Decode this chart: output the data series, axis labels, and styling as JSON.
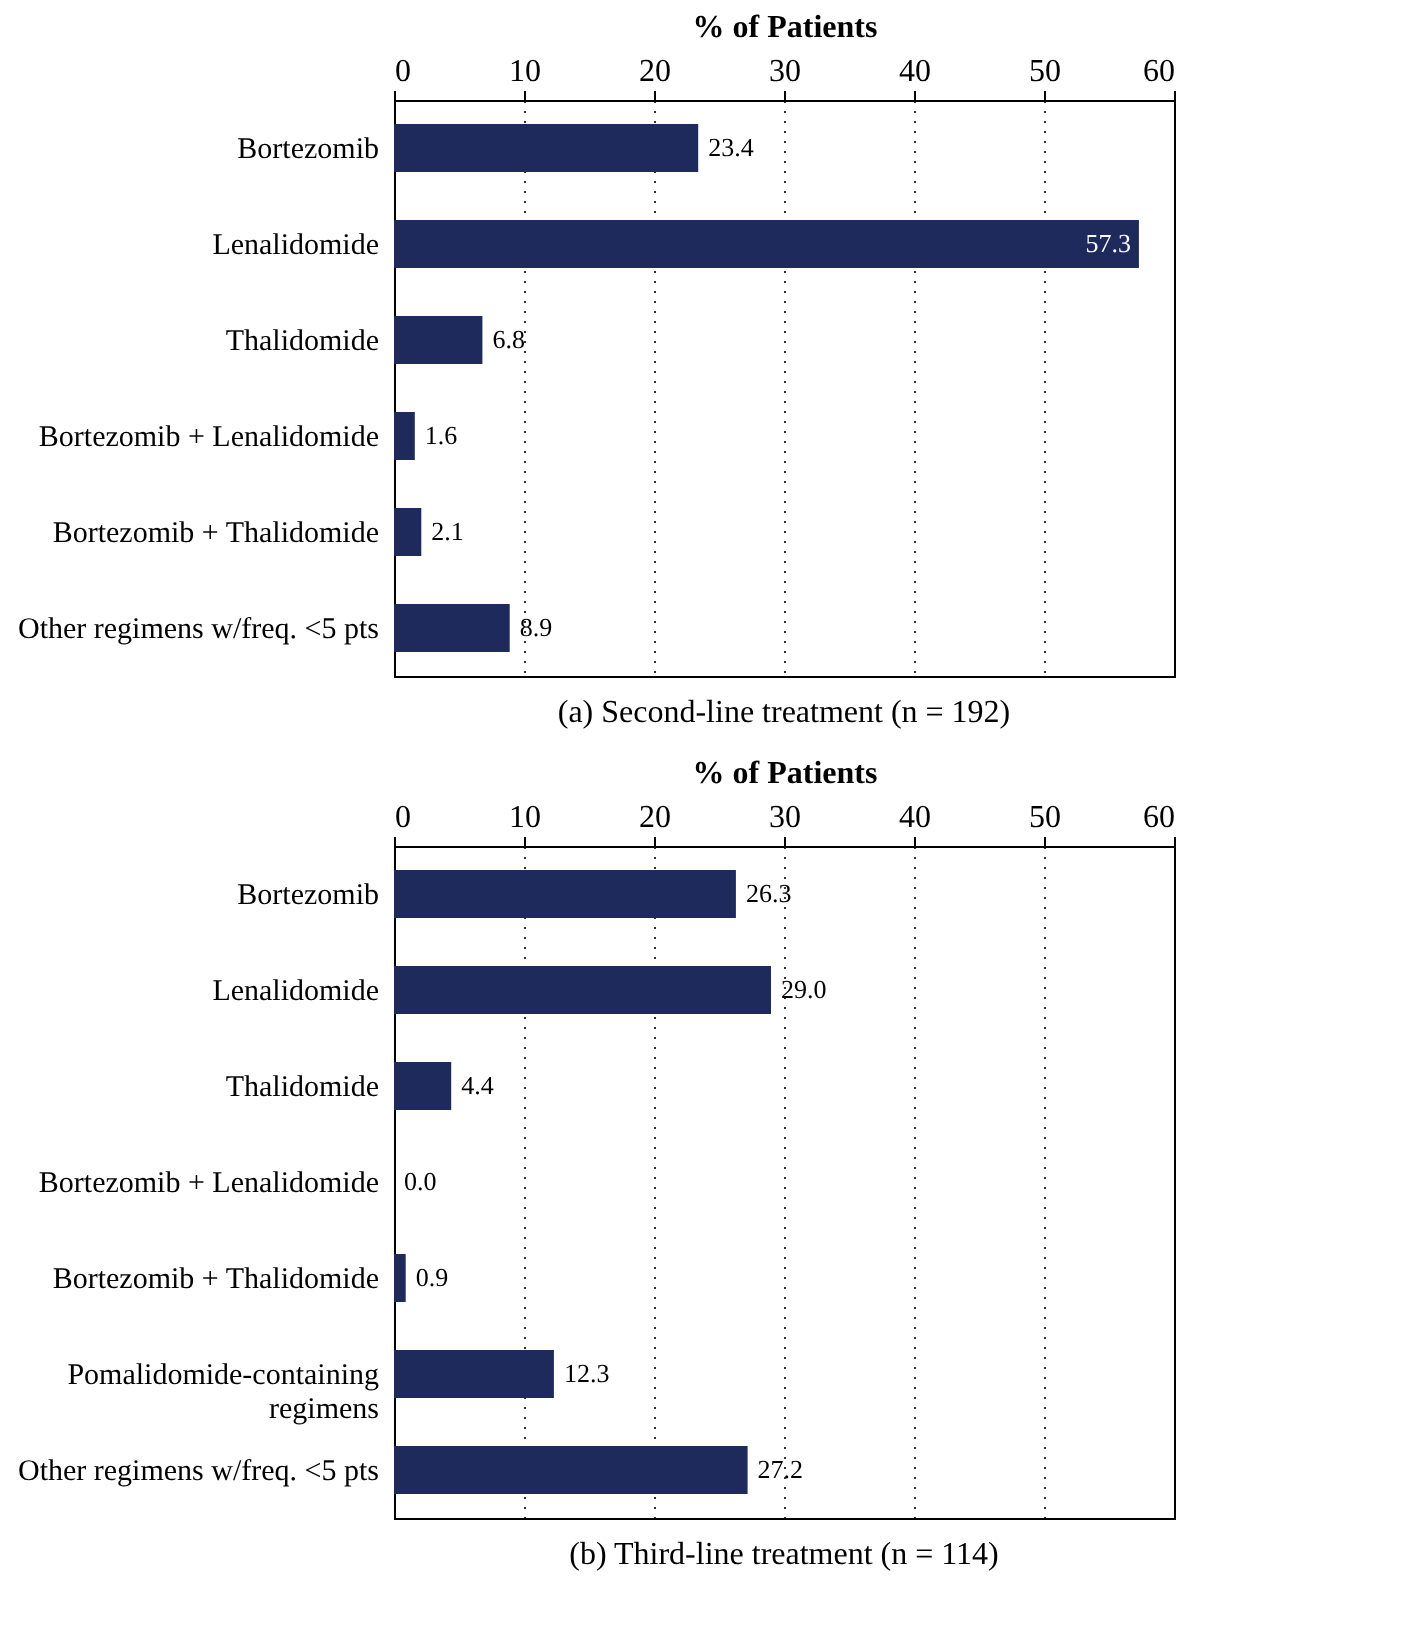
{
  "chart_data": [
    {
      "type": "bar",
      "orientation": "horizontal",
      "xlabel": "% of Patients",
      "categories": [
        "Bortezomib",
        "Lenalidomide",
        "Thalidomide",
        "Bortezomib + Lenalidomide",
        "Bortezomib + Thalidomide",
        "Other regimens w/freq. <5 pts"
      ],
      "values": [
        23.4,
        57.3,
        6.8,
        1.6,
        2.1,
        8.9
      ],
      "value_labels": [
        "23.4",
        "57.3",
        "6.8",
        "1.6",
        "2.1",
        "8.9"
      ],
      "color": "#1f2a5c",
      "xlim": [
        0,
        60
      ],
      "xticks": [
        0,
        10,
        20,
        30,
        40,
        50,
        60
      ],
      "grid": "x",
      "annotations": [
        "(a)  Second-line treatment (n = 192)"
      ]
    },
    {
      "type": "bar",
      "orientation": "horizontal",
      "xlabel": "% of Patients",
      "categories": [
        "Bortezomib",
        "Lenalidomide",
        "Thalidomide",
        "Bortezomib + Lenalidomide",
        "Bortezomib + Thalidomide",
        "Pomalidomide-containing regimens",
        "Other regimens w/freq. <5 pts"
      ],
      "values": [
        26.3,
        29.0,
        4.4,
        0.0,
        0.9,
        12.3,
        27.2
      ],
      "value_labels": [
        "26.3",
        "29.0",
        "4.4",
        "0.0",
        "0.9",
        "12.3",
        "27.2"
      ],
      "color": "#1f2a5c",
      "xlim": [
        0,
        60
      ],
      "xticks": [
        0,
        10,
        20,
        30,
        40,
        50,
        60
      ],
      "grid": "x",
      "annotations": [
        "(b)  Third-line treatment (n = 114)"
      ]
    }
  ]
}
